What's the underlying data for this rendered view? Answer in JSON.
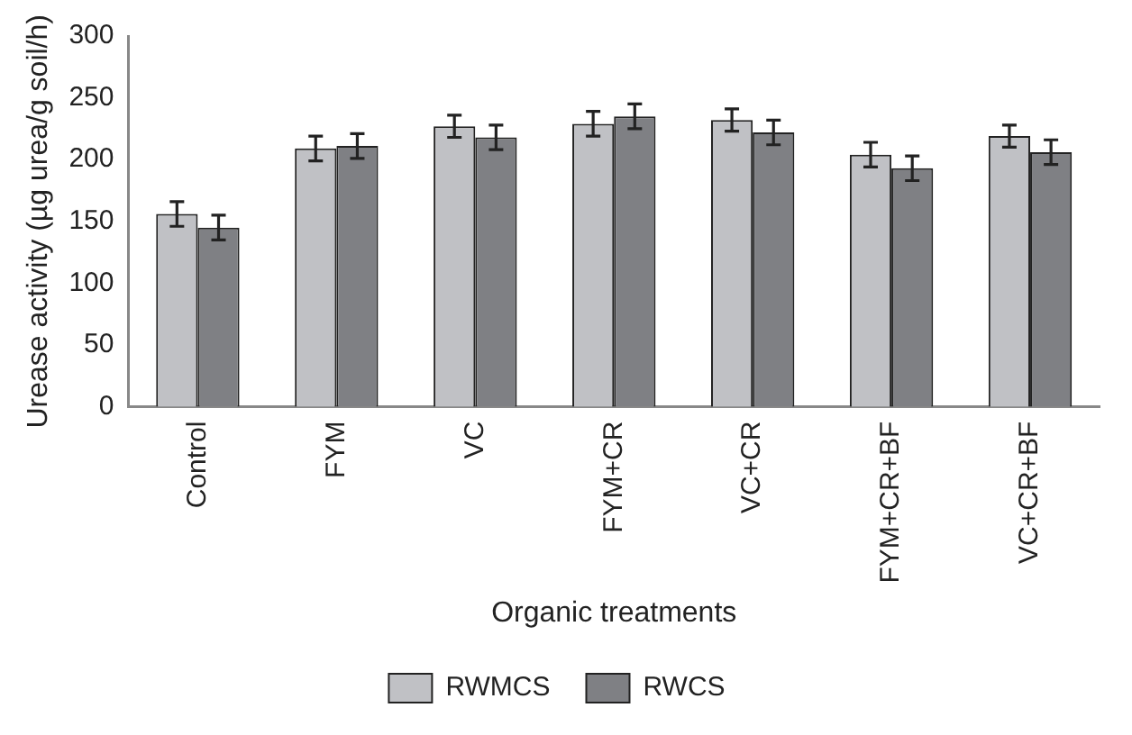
{
  "chart_data": {
    "type": "bar",
    "xlabel": "Organic treatments",
    "ylabel": "Urease activity (µg urea/g soil/h)",
    "categories": [
      "Control",
      "FYM",
      "VC",
      "FYM+CR",
      "VC+CR",
      "FYM+CR+BF",
      "VC+CR+BF"
    ],
    "series": [
      {
        "name": "RWMCS",
        "color": "#c0c1c5",
        "values": [
          156,
          209,
          227,
          229,
          232,
          204,
          219
        ],
        "errors": [
          10,
          10,
          9,
          10,
          9,
          10,
          9
        ]
      },
      {
        "name": "RWCS",
        "color": "#7f8084",
        "values": [
          145,
          211,
          218,
          235,
          222,
          193,
          206
        ],
        "errors": [
          10,
          10,
          10,
          10,
          10,
          10,
          10
        ]
      }
    ],
    "ylim": [
      0,
      300
    ],
    "yticks": [
      0,
      50,
      100,
      150,
      200,
      250,
      300
    ],
    "grid": false,
    "legend": "bottom"
  }
}
